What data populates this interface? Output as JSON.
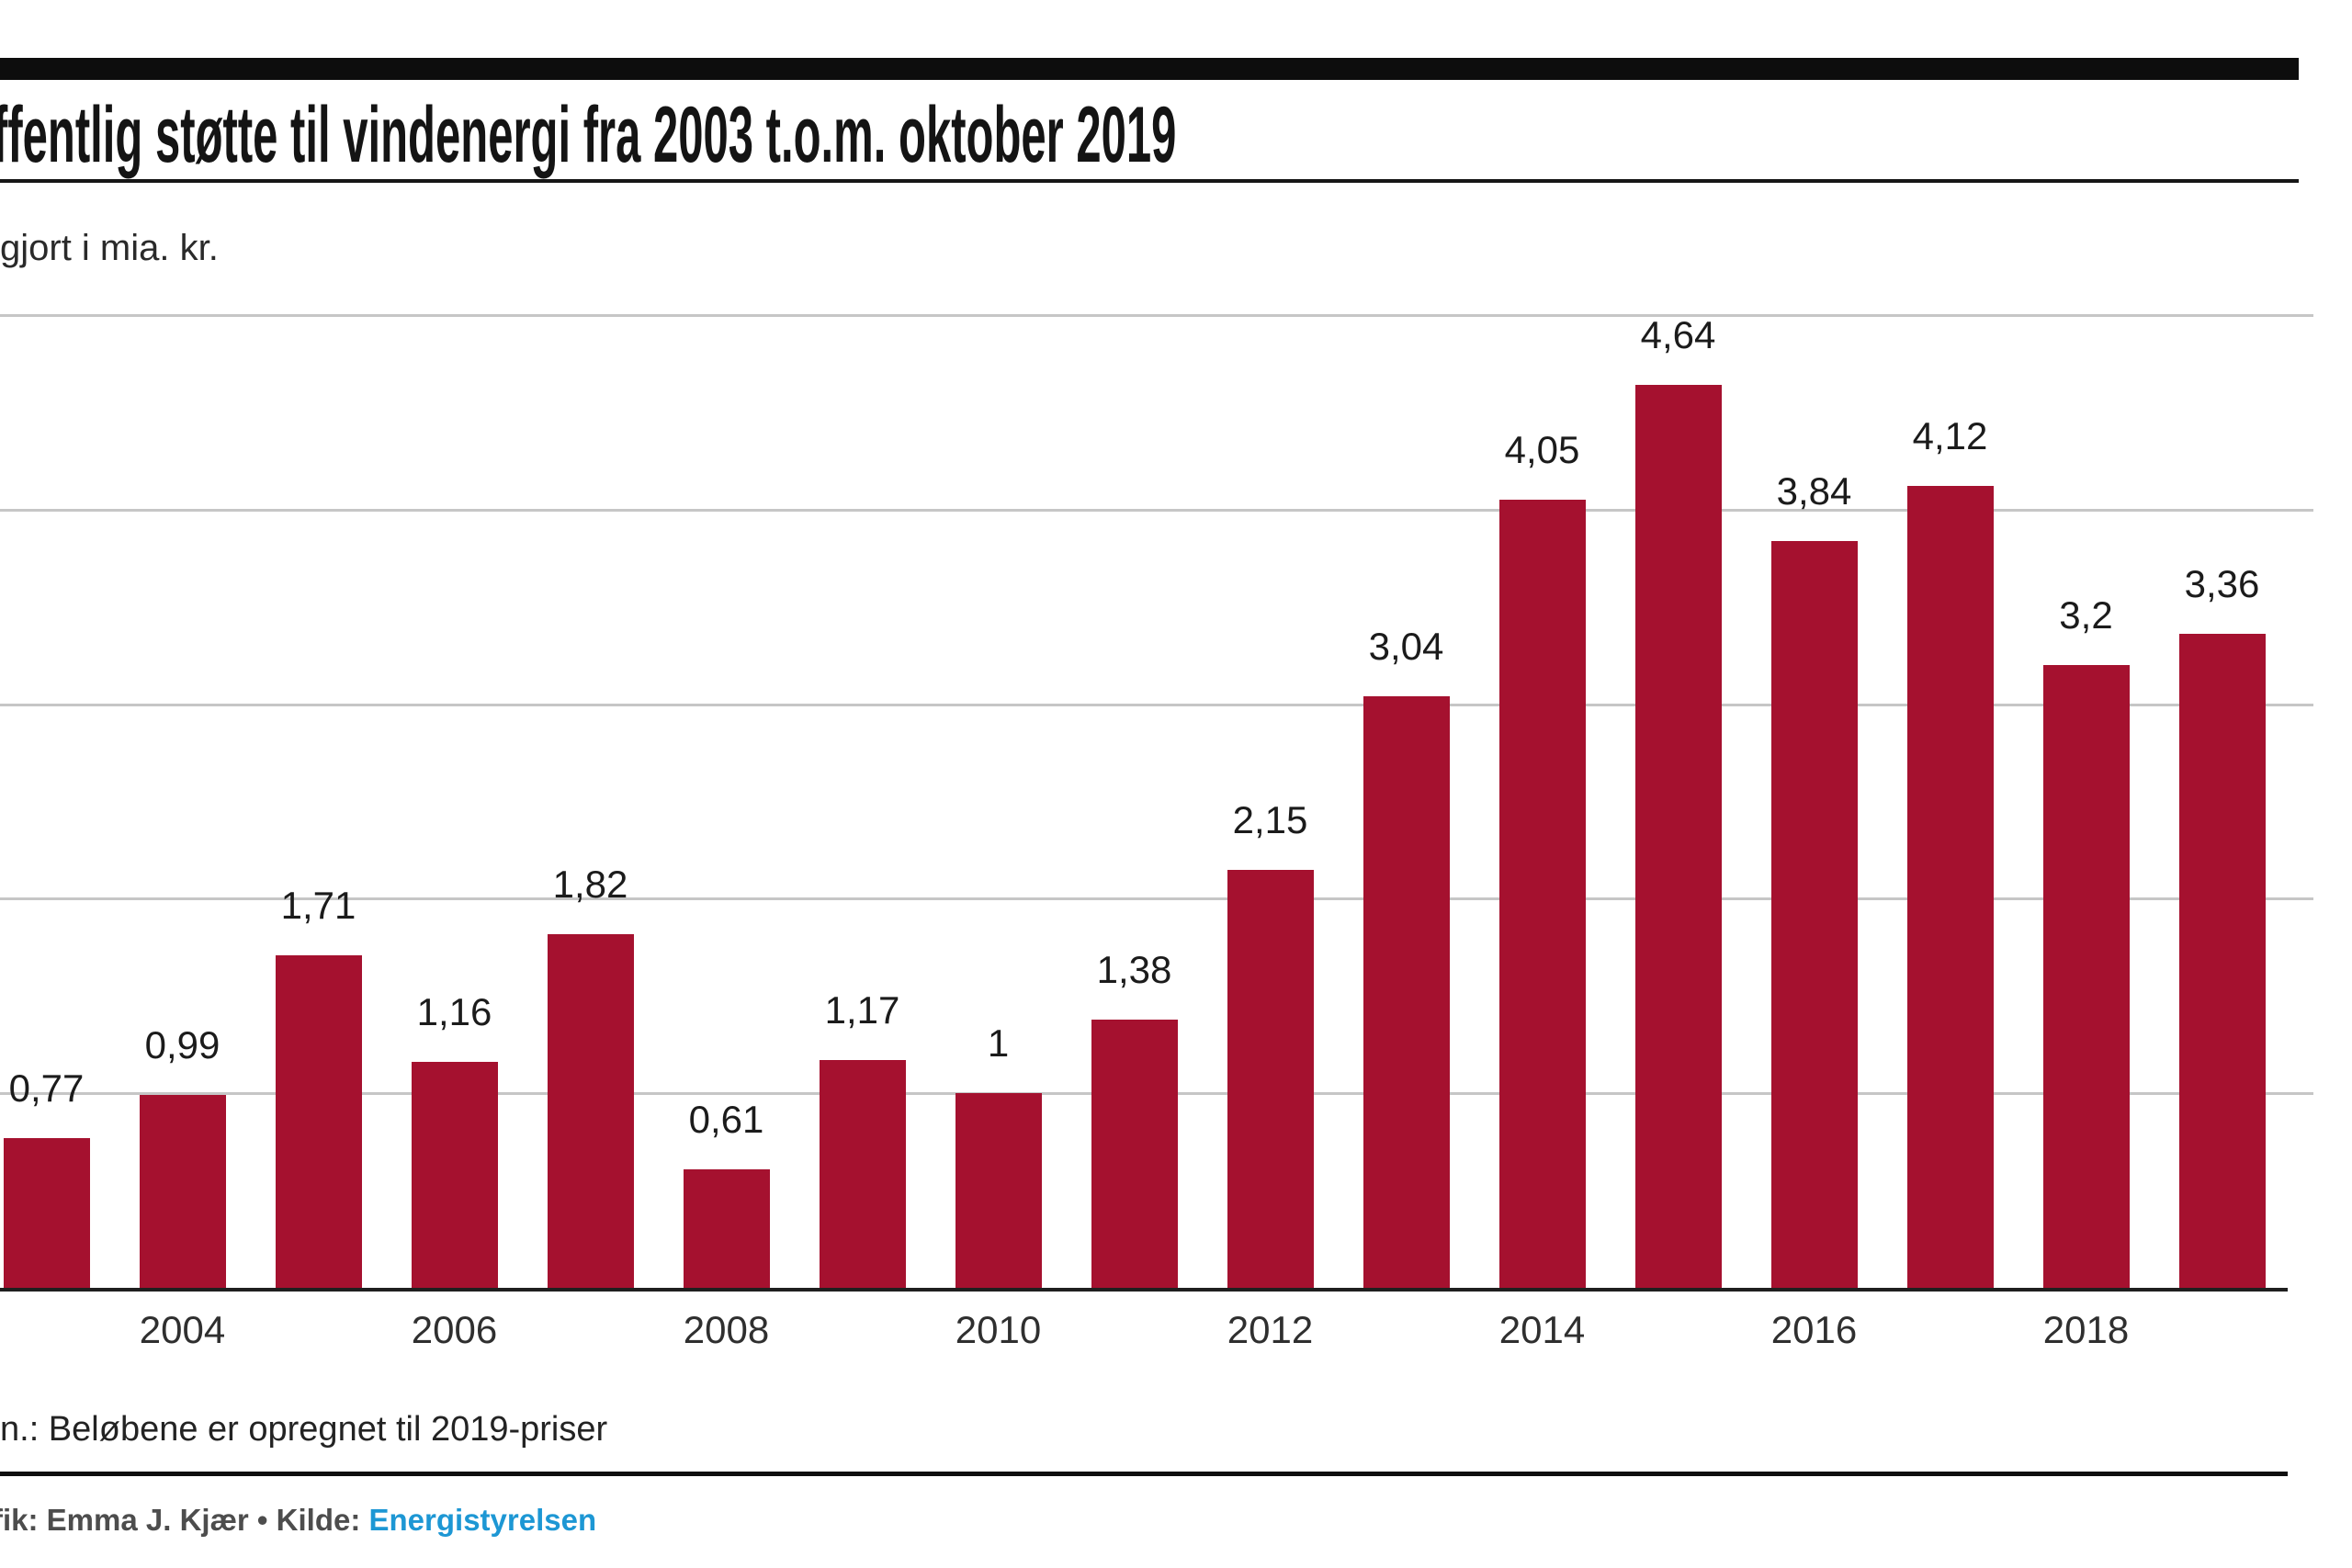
{
  "page": {
    "footnote": "n.: Beløbene er opregnet til 2019-priser",
    "credits": {
      "prefix": "fik: Emma J. Kjær • Kilde: ",
      "source_link": "Energistyrelsen"
    }
  },
  "colors": {
    "bar": "#a5112f",
    "link_blue": "#1d97d4",
    "grid": "#c6c6c6",
    "axis_line": "#1f1f1f",
    "rule_black": "#0d0d0d",
    "text_gray": "#4d4d4d"
  },
  "chart_data": {
    "type": "bar",
    "title": "ffentlig støtte til vindenergi fra 2003 t.o.m. oktober 2019",
    "subtitle": "gjort i mia. kr.",
    "ylabel": "mia. kr.",
    "xlabel": "",
    "ylim": [
      0,
      5
    ],
    "grid": "horizontal",
    "legend": "none",
    "gridline_values": [
      1,
      2,
      3,
      4,
      5
    ],
    "x_tick_labels": [
      "2004",
      "2006",
      "2008",
      "2010",
      "2012",
      "2014",
      "2016",
      "2018"
    ],
    "points": [
      {
        "year": 2003,
        "value": 0.77,
        "label": "0,77"
      },
      {
        "year": 2004,
        "value": 0.99,
        "label": "0,99"
      },
      {
        "year": 2005,
        "value": 1.71,
        "label": "1,71"
      },
      {
        "year": 2006,
        "value": 1.16,
        "label": "1,16"
      },
      {
        "year": 2007,
        "value": 1.82,
        "label": "1,82"
      },
      {
        "year": 2008,
        "value": 0.61,
        "label": "0,61"
      },
      {
        "year": 2009,
        "value": 1.17,
        "label": "1,17"
      },
      {
        "year": 2010,
        "value": 1.0,
        "label": "1"
      },
      {
        "year": 2011,
        "value": 1.38,
        "label": "1,38"
      },
      {
        "year": 2012,
        "value": 2.15,
        "label": "2,15"
      },
      {
        "year": 2013,
        "value": 3.04,
        "label": "3,04"
      },
      {
        "year": 2014,
        "value": 4.05,
        "label": "4,05"
      },
      {
        "year": 2015,
        "value": 4.64,
        "label": "4,64"
      },
      {
        "year": 2016,
        "value": 3.84,
        "label": "3,84"
      },
      {
        "year": 2017,
        "value": 4.12,
        "label": "4,12"
      },
      {
        "year": 2018,
        "value": 3.2,
        "label": "3,2"
      },
      {
        "year": 2019,
        "value": 3.36,
        "label": "3,36"
      }
    ]
  }
}
